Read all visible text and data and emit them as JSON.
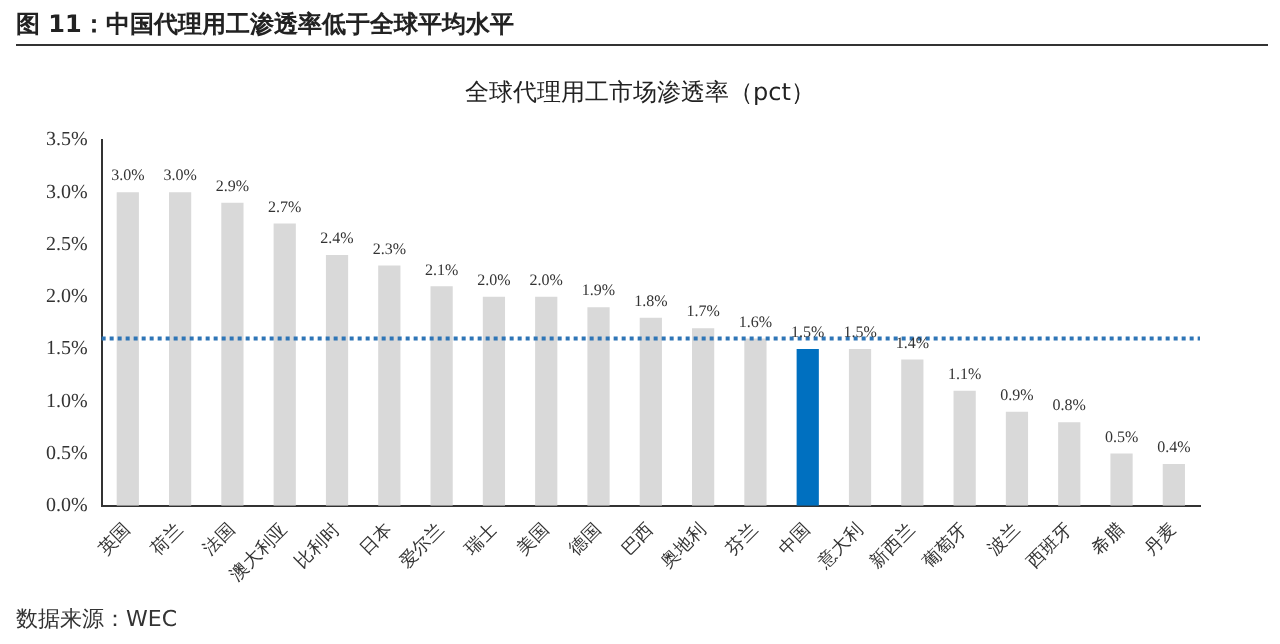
{
  "chart_data": {
    "type": "bar",
    "title": "全球代理用工市场渗透率（pct）",
    "subtitle": "图 11：中国代理用工渗透率低于全球平均水平",
    "categories": [
      "英国",
      "荷兰",
      "法国",
      "澳大利亚",
      "比利时",
      "日本",
      "爱尔兰",
      "瑞士",
      "美国",
      "德国",
      "巴西",
      "奥地利",
      "芬兰",
      "中国",
      "意大利",
      "新西兰",
      "葡萄牙",
      "波兰",
      "西班牙",
      "希腊",
      "丹麦"
    ],
    "values": [
      3.0,
      3.0,
      2.9,
      2.7,
      2.4,
      2.3,
      2.1,
      2.0,
      2.0,
      1.9,
      1.8,
      1.7,
      1.6,
      1.5,
      1.5,
      1.4,
      1.1,
      0.9,
      0.8,
      0.5,
      0.4
    ],
    "colors": [
      "#d9d9d9",
      "#d9d9d9",
      "#d9d9d9",
      "#d9d9d9",
      "#d9d9d9",
      "#d9d9d9",
      "#d9d9d9",
      "#d9d9d9",
      "#d9d9d9",
      "#d9d9d9",
      "#d9d9d9",
      "#d9d9d9",
      "#d9d9d9",
      "#0070c0",
      "#d9d9d9",
      "#d9d9d9",
      "#d9d9d9",
      "#d9d9d9",
      "#d9d9d9",
      "#d9d9d9",
      "#d9d9d9"
    ],
    "value_labels": [
      "3.0%",
      "3.0%",
      "2.9%",
      "2.7%",
      "2.4%",
      "2.3%",
      "2.1%",
      "2.0%",
      "2.0%",
      "1.9%",
      "1.8%",
      "1.7%",
      "1.6%",
      "1.5%",
      "1.5%",
      "1.4%",
      "1.1%",
      "0.9%",
      "0.8%",
      "0.5%",
      "0.4%"
    ],
    "ylim": [
      0,
      3.5
    ],
    "yticks": [
      {
        "value": 0,
        "label": "0.0%"
      },
      {
        "value": 0.5,
        "label": "0.5%"
      },
      {
        "value": 1,
        "label": "1.0%"
      },
      {
        "value": 1.5,
        "label": "1.5%"
      },
      {
        "value": 2,
        "label": "2.0%"
      },
      {
        "value": 2.5,
        "label": "2.5%"
      },
      {
        "value": 3,
        "label": "3.0%"
      },
      {
        "value": 3.5,
        "label": "3.5%"
      }
    ],
    "ref_lines": [
      {
        "axis": "y",
        "value": 1.6,
        "color": "#2e75b6",
        "line_style": "dotted"
      }
    ],
    "grid": false,
    "legend": false,
    "annotations": [
      "数据来源：WEC"
    ]
  }
}
